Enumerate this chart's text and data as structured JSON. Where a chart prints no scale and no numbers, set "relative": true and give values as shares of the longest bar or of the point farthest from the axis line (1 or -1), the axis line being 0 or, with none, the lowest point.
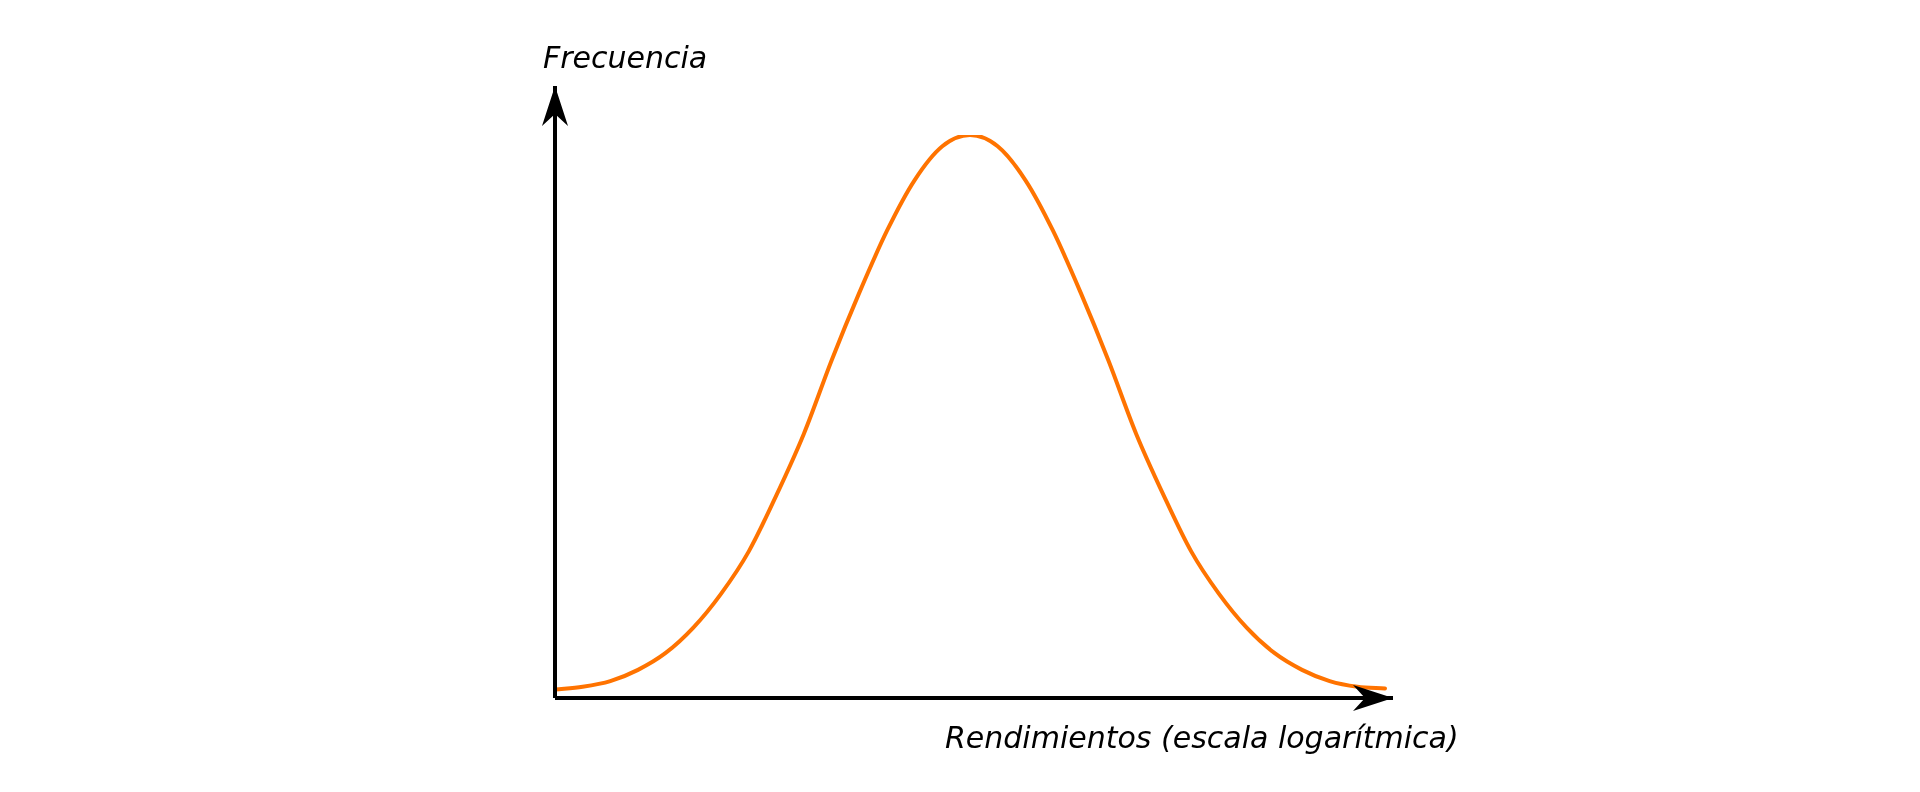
{
  "chart_data": {
    "type": "line",
    "relative": true,
    "xlabel": "Rendimientos (escala logarítmica)",
    "ylabel": "Frecuencia",
    "categories": [
      null,
      null,
      null,
      null,
      null,
      null,
      null,
      null,
      null,
      null,
      null,
      null,
      null,
      null,
      null,
      null,
      null,
      null,
      null,
      null,
      null,
      null,
      null,
      null,
      null,
      null,
      null,
      null,
      null,
      null,
      null
    ],
    "series": [
      {
        "color": "#ff7300",
        "values": [
          0.015,
          0.02,
          0.03,
          0.05,
          0.08,
          0.125,
          0.185,
          0.26,
          0.36,
          0.47,
          0.6,
          0.72,
          0.83,
          0.92,
          0.98,
          1.0,
          0.98,
          0.92,
          0.83,
          0.72,
          0.6,
          0.47,
          0.36,
          0.26,
          0.185,
          0.125,
          0.08,
          0.05,
          0.03,
          0.02,
          0.017
        ]
      }
    ],
    "marker": "none",
    "line_style": "solid",
    "legend": false
  }
}
